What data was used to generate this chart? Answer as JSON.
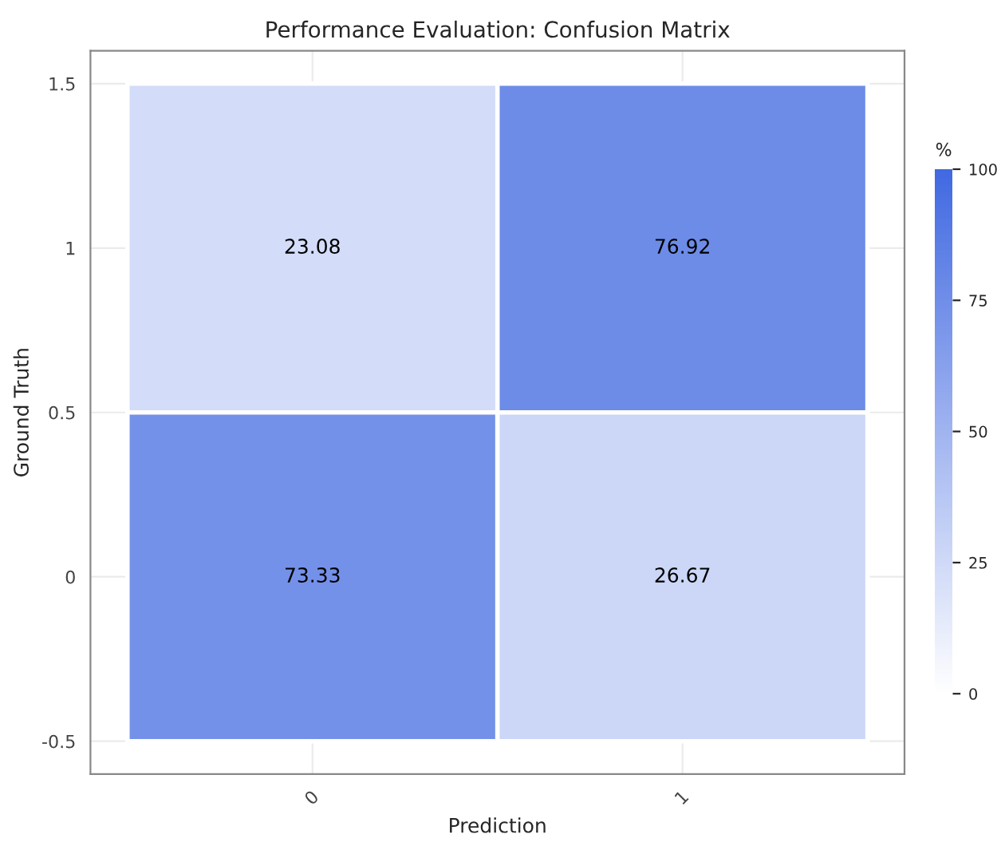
{
  "chart_data": {
    "type": "heatmap",
    "title": "Performance Evaluation: Confusion Matrix",
    "xlabel": "Prediction",
    "ylabel": "Ground Truth",
    "clabel": "%",
    "categories": [
      "0",
      "1"
    ],
    "y": [
      1,
      0
    ],
    "cells": [
      [
        23.08,
        76.92
      ],
      [
        73.33,
        26.67
      ]
    ],
    "data_labels": true,
    "ylim": [
      -0.6,
      1.6
    ],
    "yticks": [
      -0.5,
      0,
      0.5,
      1,
      1.5
    ],
    "clim": [
      0,
      100
    ],
    "cticks": [
      0,
      25,
      50,
      75,
      100
    ],
    "colors": [
      "#ffffff",
      "#4169e1"
    ],
    "grid": true
  }
}
